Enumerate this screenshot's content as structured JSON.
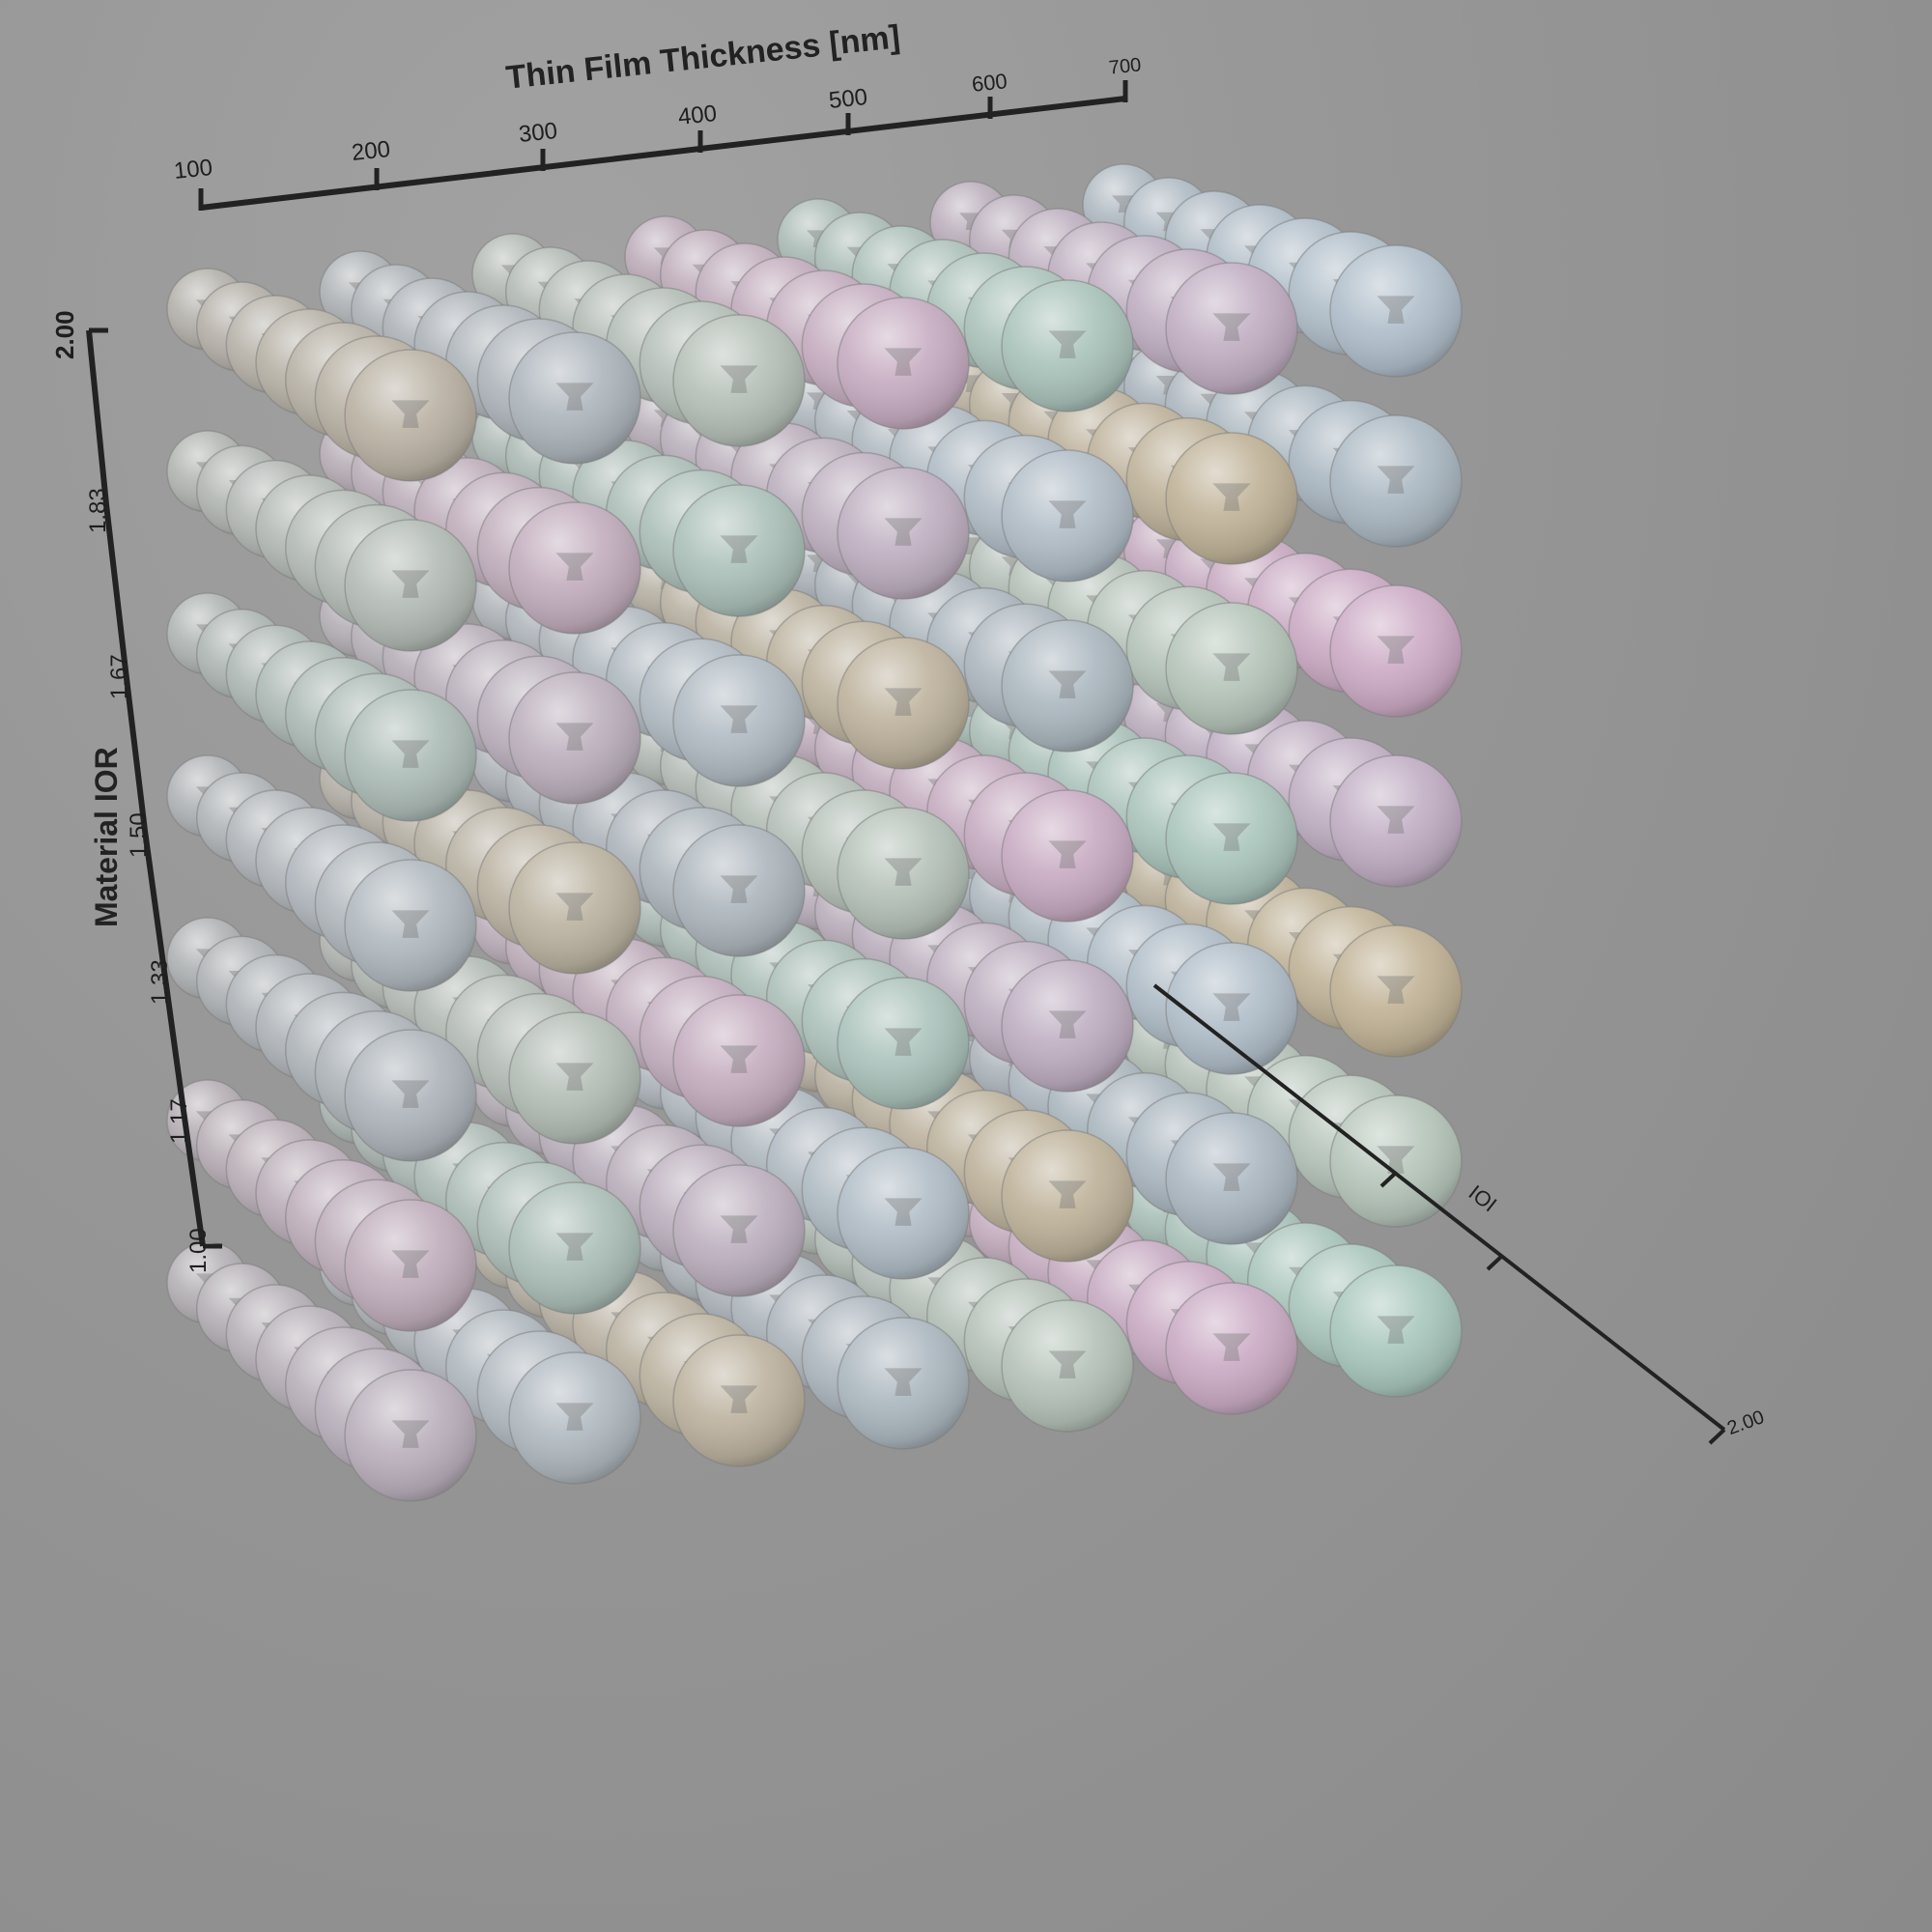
{
  "figure": {
    "background": "#979797",
    "axis_color": "#222222",
    "top_axis": {
      "title": "Thin Film Thickness [nm]",
      "ticks": [
        "100",
        "200",
        "300",
        "400",
        "500",
        "600",
        "700"
      ]
    },
    "left_axis": {
      "title": "Material IOR",
      "ticks": [
        "2.00",
        "1.83",
        "1.67",
        "1.50",
        "1.33",
        "1.17",
        "1.00"
      ]
    },
    "depth_axis": {
      "partial_label": "IOI",
      "end_tick": "2.00"
    },
    "grid": {
      "columns": 7,
      "rows": 7,
      "depth_layers": 7
    },
    "sphere_tints": [
      "#c8b48c",
      "#a9bccb",
      "#b9cfbf",
      "#d9a9cf",
      "#a7d1c3",
      "#c9aecd",
      "#b0c5d6"
    ]
  }
}
